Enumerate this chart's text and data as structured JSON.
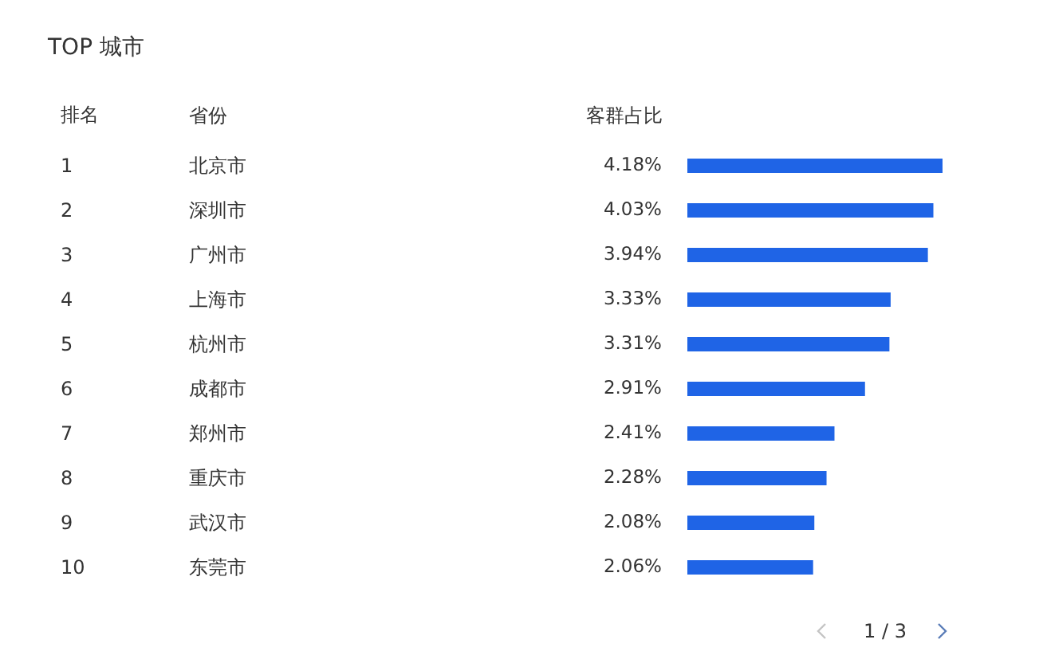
{
  "chart_data": {
    "type": "bar",
    "orientation": "horizontal",
    "title": "TOP 城市",
    "xlabel": "客群占比",
    "ylabel": "省份",
    "categories": [
      "北京市",
      "深圳市",
      "广州市",
      "上海市",
      "杭州市",
      "成都市",
      "郑州市",
      "重庆市",
      "武汉市",
      "东莞市"
    ],
    "values": [
      4.18,
      4.03,
      3.94,
      3.33,
      3.31,
      2.91,
      2.41,
      2.28,
      2.08,
      2.06
    ],
    "color": "#1f64e6",
    "value_labels": [
      "4.18%",
      "4.03%",
      "3.94%",
      "3.33%",
      "3.31%",
      "2.91%",
      "2.41%",
      "2.28%",
      "2.08%",
      "2.06%"
    ],
    "annotations": [
      "排名",
      "1",
      "2",
      "3",
      "4",
      "5",
      "6",
      "7",
      "8",
      "9",
      "10",
      "1 / 3"
    ]
  }
}
